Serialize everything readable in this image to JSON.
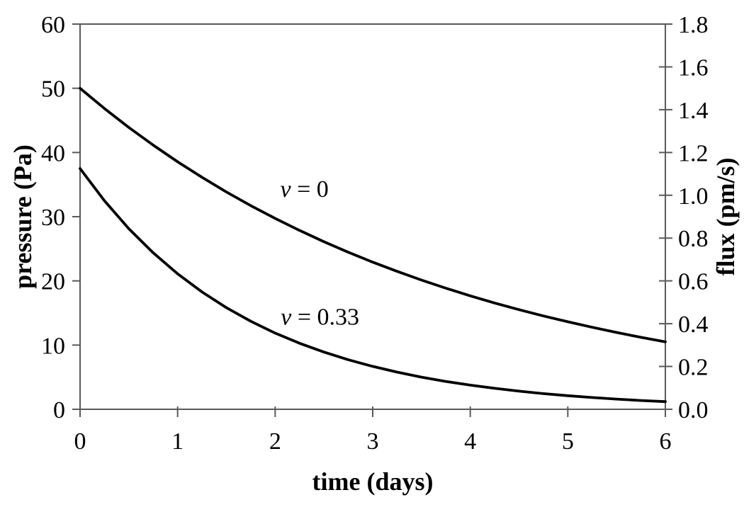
{
  "figure": {
    "background_color": "#ffffff",
    "frame_color": "#5a5a5a",
    "curve_color": "#000000"
  },
  "chart_data": {
    "type": "line",
    "title": "",
    "xlabel": "time (days)",
    "ylabel_left": "pressure (Pa)",
    "ylabel_right": "flux (pm/s)",
    "xlim": [
      0,
      6
    ],
    "ylim_left": [
      0,
      60
    ],
    "ylim_right": [
      0,
      1.8
    ],
    "grid": false,
    "legend_position": "none (inline curve annotations)",
    "x_ticks": [
      "0",
      "1",
      "2",
      "3",
      "4",
      "5",
      "6"
    ],
    "y_ticks_left": [
      "0",
      "10",
      "20",
      "30",
      "40",
      "50",
      "60"
    ],
    "y_ticks_right": [
      "0.0",
      "0.2",
      "0.4",
      "0.6",
      "0.8",
      "1.0",
      "1.2",
      "1.4",
      "1.6",
      "1.8"
    ],
    "right_axis_relation": "flux = pressure × 0.03",
    "x": [
      0,
      0.25,
      0.5,
      0.75,
      1,
      1.25,
      1.5,
      1.75,
      2,
      2.25,
      2.5,
      2.75,
      3,
      3.25,
      3.5,
      3.75,
      4,
      4.25,
      4.5,
      4.75,
      5,
      5.25,
      5.5,
      5.75,
      6
    ],
    "series": [
      {
        "name": "ν = 0",
        "pressure_values": [
          50,
          46.85,
          43.9,
          41.14,
          38.55,
          36.13,
          33.85,
          31.72,
          29.73,
          27.86,
          26.1,
          24.46,
          22.92,
          21.48,
          20.13,
          18.86,
          17.67,
          16.56,
          15.52,
          14.54,
          13.63,
          12.77,
          11.97,
          11.21,
          10.51
        ],
        "flux_values": [
          1.5,
          1.41,
          1.32,
          1.23,
          1.16,
          1.08,
          1.02,
          0.95,
          0.89,
          0.84,
          0.78,
          0.73,
          0.69,
          0.64,
          0.6,
          0.57,
          0.53,
          0.5,
          0.47,
          0.44,
          0.41,
          0.38,
          0.36,
          0.34,
          0.32
        ]
      },
      {
        "name": "ν = 0.33",
        "pressure_values": [
          37.5,
          32.48,
          28.13,
          24.36,
          21.1,
          18.28,
          15.83,
          13.71,
          11.87,
          10.28,
          8.91,
          7.71,
          6.68,
          5.79,
          5.01,
          4.34,
          3.76,
          3.26,
          2.82,
          2.44,
          2.12,
          1.83,
          1.59,
          1.37,
          1.19
        ],
        "flux_values": [
          1.13,
          0.97,
          0.84,
          0.73,
          0.63,
          0.55,
          0.47,
          0.41,
          0.36,
          0.31,
          0.27,
          0.23,
          0.2,
          0.17,
          0.15,
          0.13,
          0.11,
          0.1,
          0.08,
          0.07,
          0.06,
          0.05,
          0.05,
          0.04,
          0.04
        ]
      }
    ],
    "annotations": [
      {
        "label": "ν = 0",
        "x": 2.3,
        "y_pressure": 34.3
      },
      {
        "label": "ν = 0.33",
        "x": 2.46,
        "y_pressure": 14.4
      }
    ]
  }
}
